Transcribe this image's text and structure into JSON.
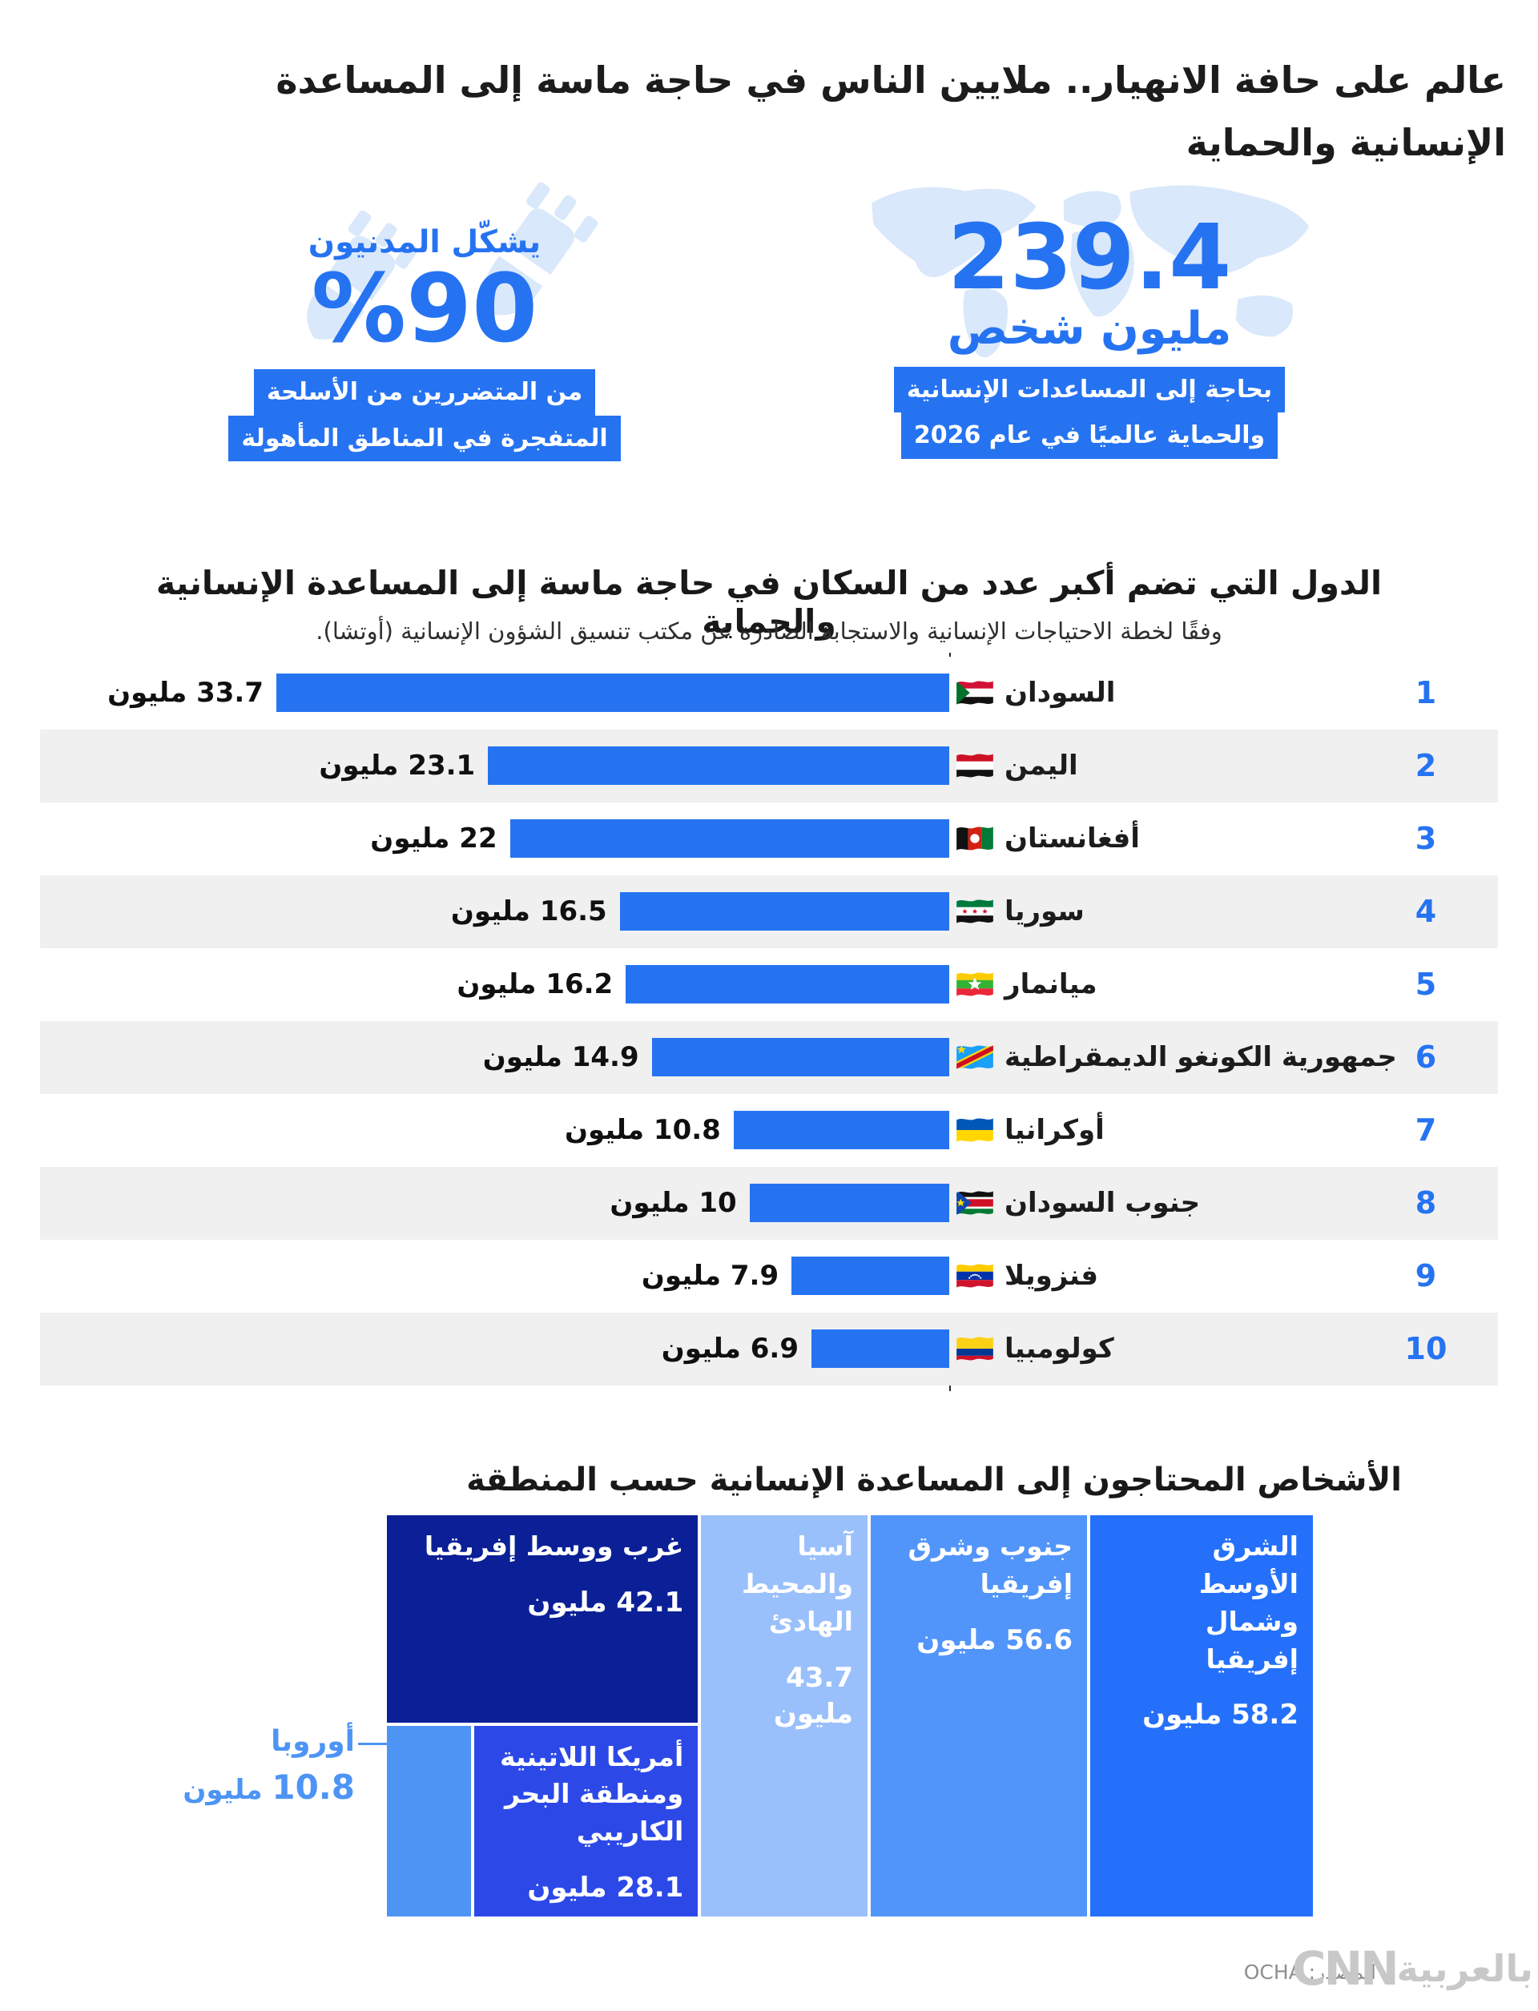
{
  "page": {
    "title": "عالم على حافة الانهيار.. ملايين الناس في حاجة ماسة إلى المساعدة الإنسانية والحماية",
    "source_label": "المصدر: OCHA",
    "brand": {
      "arabic": "بالعربية",
      "latin": "CNN"
    }
  },
  "colors": {
    "accent_blue": "#2673f2",
    "light_blue_decoration": "#d9e8fb",
    "alt_row": "#f0f0f0",
    "callout_blue": "#4d94f5"
  },
  "stats": {
    "civilians": {
      "lead": "يشكّل المدنيون",
      "value_display": "%90",
      "desc_line1": "من المتضررين من الأسلحة",
      "desc_line2": "المتفجرة في المناطق المأهولة"
    },
    "global": {
      "value": "239.4",
      "unit": "مليون شخص",
      "desc_line1": "بحاجة إلى المساعدات الإنسانية",
      "desc_line2": "والحماية عالميًا في عام 2026"
    }
  },
  "bar_section": {
    "title": "الدول التي تضم أكبر عدد من السكان في حاجة ماسة إلى المساعدة الإنسانية والحماية",
    "subtitle": "وفقًا لخطة الاحتياجات الإنسانية والاستجابة الصادرة عن مكتب تنسيق الشؤون الإنسانية (أوتشا)."
  },
  "chart_data": [
    {
      "type": "bar",
      "orientation": "horizontal-rtl",
      "title": "الدول التي تضم أكبر عدد من السكان في حاجة ماسة إلى المساعدة الإنسانية والحماية",
      "unit": "مليون",
      "xlim": [
        0,
        34
      ],
      "categories": [
        "السودان",
        "اليمن",
        "أفغانستان",
        "سوريا",
        "ميانمار",
        "جمهورية الكونغو الديمقراطية",
        "أوكرانيا",
        "جنوب السودان",
        "فنزويلا",
        "كولومبيا"
      ],
      "values": [
        33.7,
        23.1,
        22,
        16.5,
        16.2,
        14.9,
        10.8,
        10,
        7.9,
        6.9
      ],
      "value_labels": [
        "33.7 مليون",
        "23.1 مليون",
        "22 مليون",
        "16.5 مليون",
        "16.2 مليون",
        "14.9 مليون",
        "10.8 مليون",
        "10 مليون",
        "7.9 مليون",
        "6.9 مليون"
      ],
      "ranks": [
        "1",
        "2",
        "3",
        "4",
        "5",
        "6",
        "7",
        "8",
        "9",
        "10"
      ],
      "flags": [
        "sudan",
        "yemen",
        "afghanistan",
        "syria",
        "myanmar",
        "drc",
        "ukraine",
        "south-sudan",
        "venezuela",
        "colombia"
      ],
      "bar_color": "#2673f2"
    },
    {
      "type": "treemap",
      "title": "الأشخاص المحتاجون إلى المساعدة الإنسانية حسب المنطقة",
      "unit": "مليون",
      "regions": [
        {
          "name": "الشرق الأوسط وشمال إفريقيا",
          "value": 58.2,
          "label": "58.2 مليون",
          "unit": "مليون",
          "color": "#2470fa"
        },
        {
          "name": "جنوب وشرق إفريقيا",
          "value": 56.6,
          "label": "56.6 مليون",
          "unit": "مليون",
          "color": "#5295fa"
        },
        {
          "name": "آسيا والمحيط الهادئ",
          "value": 43.7,
          "label": "43.7 مليون",
          "unit": "مليون",
          "color": "#9ac0fc"
        },
        {
          "name": "غرب ووسط إفريقيا",
          "value": 42.1,
          "label": "42.1 مليون",
          "unit": "مليون",
          "color": "#0b2096"
        },
        {
          "name": "أمريكا اللاتينية ومنطقة البحر الكاريبي",
          "value": 28.1,
          "label": "28.1 مليون",
          "unit": "مليون",
          "color": "#2c49e8"
        },
        {
          "name": "أوروبا",
          "value": "10.8",
          "label": "10.8 مليون",
          "unit": "مليون",
          "color": "#4d94f5"
        }
      ]
    }
  ]
}
